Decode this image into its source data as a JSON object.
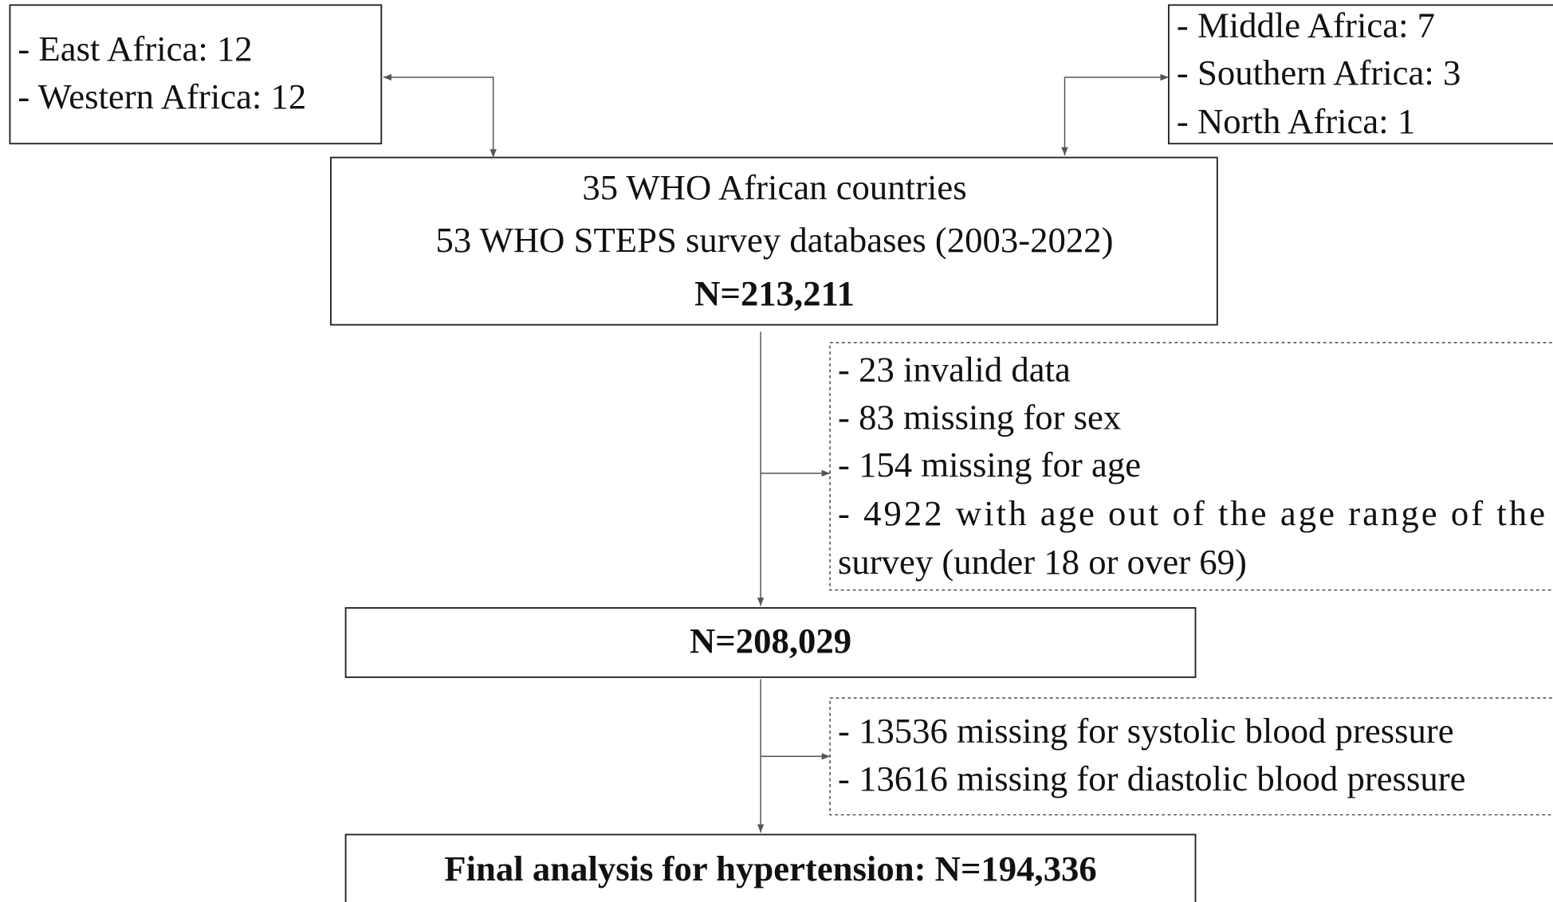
{
  "nodes": [
    {
      "lines": [
        "- East Africa: 12",
        "- Western Africa: 12"
      ]
    },
    {
      "lines": [
        "- Middle Africa: 7",
        "- Southern Africa: 3",
        "- North Africa: 1"
      ]
    },
    {
      "lines": [
        "35 WHO African countries",
        "53 WHO STEPS survey databases (2003-2022)",
        "N=213,211"
      ]
    },
    {
      "lines": [
        "- 23 invalid data",
        "- 83 missing for sex",
        "- 154 missing for age",
        "- 4922 with age out of the age range of the",
        "survey (under 18 or over 69)"
      ]
    },
    {
      "lines": [
        "N=208,029"
      ]
    },
    {
      "lines": [
        "- 13536 missing for systolic blood pressure",
        "- 13616 missing for diastolic blood pressure"
      ]
    },
    {
      "lines": [
        "Final analysis for hypertension: N=194,336"
      ]
    }
  ]
}
